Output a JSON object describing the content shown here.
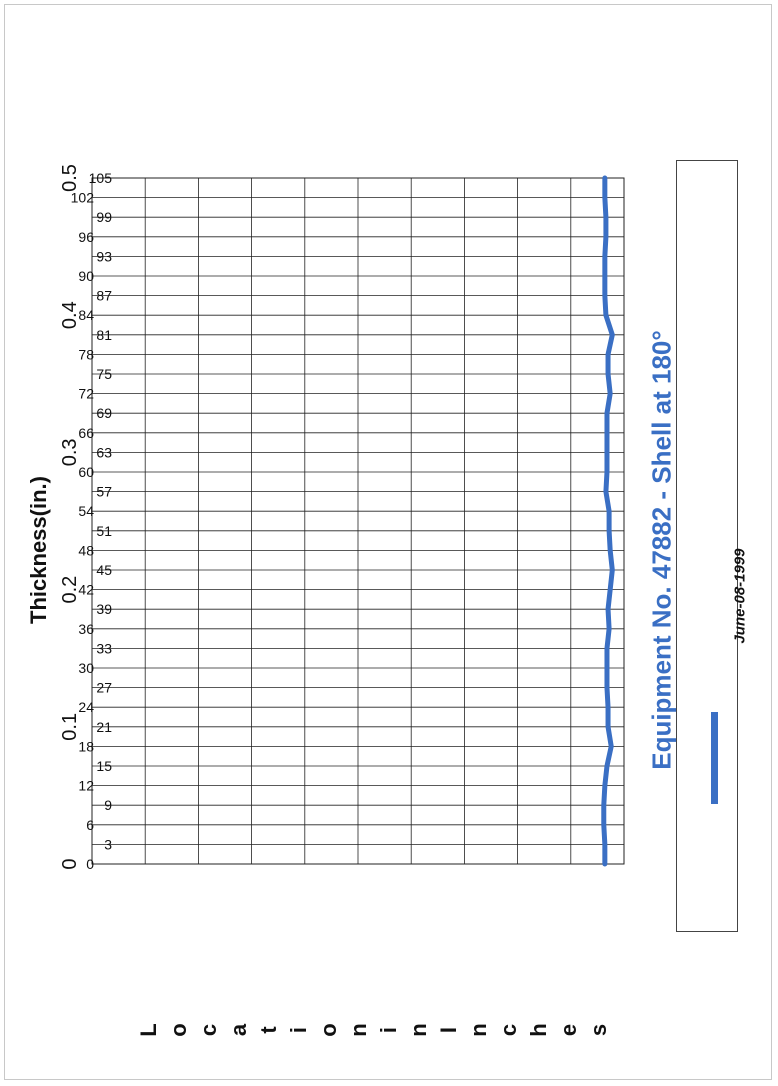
{
  "chart_data": {
    "type": "line",
    "title": "Equipment No. 47882 - Shell at 180°",
    "ylabel": "Thickness(in.)",
    "xlabel": "Location in Inches",
    "xlabel_letters": [
      "L",
      "o",
      "c",
      "a",
      "t",
      "i",
      "o",
      "n",
      "i",
      "n",
      "I",
      "n",
      "c",
      "h",
      "e",
      "s"
    ],
    "xlim": [
      105,
      0
    ],
    "ylim": [
      0,
      0.5
    ],
    "yticks": [
      0,
      0.1,
      0.2,
      0.3,
      0.4,
      0.5
    ],
    "xtick_labels": [
      "105",
      "102",
      "99",
      "96",
      "93",
      "90",
      "87",
      "84",
      "81",
      "78",
      "75",
      "72",
      "69",
      "66",
      "63",
      "60",
      "57",
      "54",
      "51",
      "48",
      "45",
      "42",
      "39",
      "36",
      "33",
      "30",
      "27",
      "24",
      "21",
      "18",
      "15",
      "12",
      "9",
      "6",
      "3",
      "0"
    ],
    "grid": true,
    "legend_position": "right",
    "series": [
      {
        "name": "June-08-1999",
        "color": "#3a6fc4",
        "x": [
          105,
          102,
          99,
          96,
          93,
          90,
          87,
          84,
          81,
          78,
          75,
          72,
          69,
          66,
          63,
          60,
          57,
          54,
          51,
          48,
          45,
          42,
          39,
          36,
          33,
          30,
          27,
          24,
          21,
          18,
          15,
          12,
          9,
          6,
          3,
          0
        ],
        "y": [
          0.482,
          0.482,
          0.483,
          0.483,
          0.482,
          0.482,
          0.482,
          0.483,
          0.489,
          0.485,
          0.485,
          0.487,
          0.484,
          0.484,
          0.484,
          0.484,
          0.483,
          0.486,
          0.486,
          0.487,
          0.489,
          0.487,
          0.485,
          0.486,
          0.484,
          0.484,
          0.484,
          0.485,
          0.485,
          0.488,
          0.484,
          0.482,
          0.481,
          0.481,
          0.482,
          0.482
        ]
      }
    ]
  }
}
